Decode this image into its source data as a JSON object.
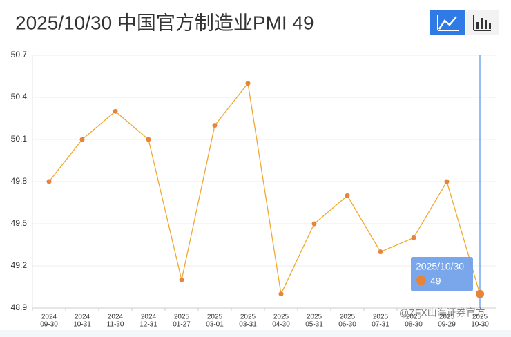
{
  "chart_data": {
    "type": "line",
    "title": "2025/10/30   中国官方制造业PMI 49",
    "categories": [
      [
        "2024",
        "09-30"
      ],
      [
        "2024",
        "10-31"
      ],
      [
        "2024",
        "11-30"
      ],
      [
        "2024",
        "12-31"
      ],
      [
        "2025",
        "01-27"
      ],
      [
        "2025",
        "03-01"
      ],
      [
        "2025",
        "03-31"
      ],
      [
        "2025",
        "04-30"
      ],
      [
        "2025",
        "05-31"
      ],
      [
        "2025",
        "06-30"
      ],
      [
        "2025",
        "07-31"
      ],
      [
        "2025",
        "08-30"
      ],
      [
        "2025",
        "09-29"
      ],
      [
        "2025",
        "10-30"
      ]
    ],
    "values": [
      49.8,
      50.1,
      50.3,
      50.1,
      49.1,
      50.2,
      50.5,
      49.0,
      49.5,
      49.7,
      49.3,
      49.4,
      49.8,
      49
    ],
    "color": "#f0a830",
    "marker_color": "#e8843a",
    "ylim": [
      48.9,
      50.7
    ],
    "yticks": [
      48.9,
      49.2,
      49.5,
      49.8,
      50.1,
      50.4,
      50.7
    ],
    "grid": true,
    "tooltip_title": "2025/10/30",
    "watermark": "@ZFX山海证券官方"
  }
}
